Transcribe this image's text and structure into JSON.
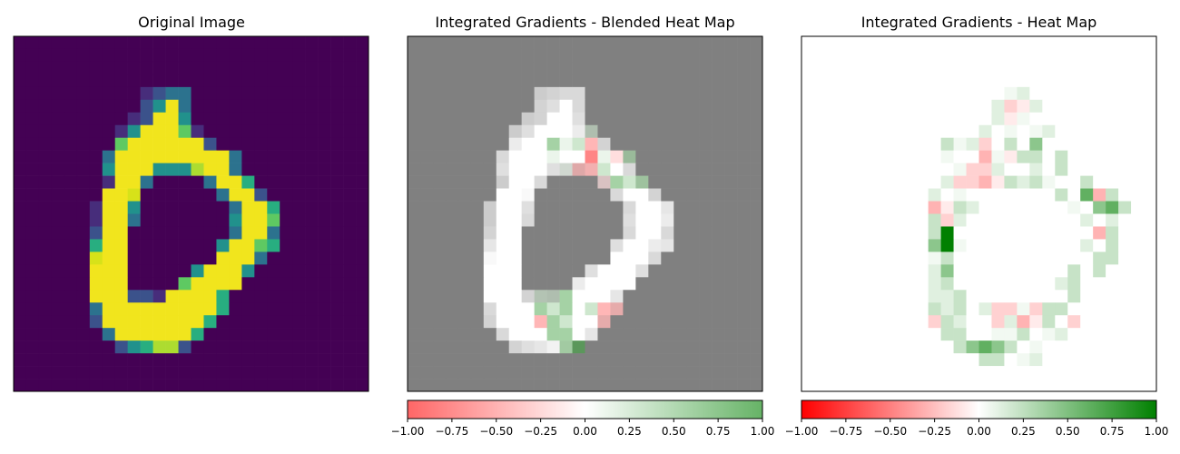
{
  "panels": [
    {
      "title": "Original Image",
      "colormap": "viridis"
    },
    {
      "title": "Integrated Gradients - Blended Heat Map",
      "colormap": "red-white-green (blended, alpha)"
    },
    {
      "title": "Integrated Gradients - Heat Map",
      "colormap": "red-white-green"
    }
  ],
  "colorbars": [
    {
      "ticks": [
        "−1.00",
        "−0.75",
        "−0.50",
        "−0.25",
        "0.00",
        "0.25",
        "0.50",
        "0.75",
        "1.00"
      ],
      "range": [
        -1,
        1
      ]
    },
    {
      "ticks": [
        "−1.00",
        "−0.75",
        "−0.50",
        "−0.25",
        "0.00",
        "0.25",
        "0.50",
        "0.75",
        "1.00"
      ],
      "range": [
        -1,
        1
      ]
    }
  ],
  "colors": {
    "negative": "#ff0000",
    "zero": "#ffffff",
    "positive": "#008000",
    "blend_background": "#808080"
  },
  "chart_data": {
    "type": "heatmap",
    "grid": [
      28,
      28
    ],
    "value_range": [
      -1,
      1
    ],
    "image": [
      "0000000000000000000000000000",
      "0000000000000000000000000000",
      "0000000000000000000000000000",
      "0000000000000000000000000000",
      "0000000000123300000000000000",
      "0000000000249300000000000000",
      "0000000001299400000000000000",
      "0000000014999610000000000000",
      "0000000069999992000000000000",
      "0000000399999999930000000000",
      "0000000499944479930000000000",
      "0000000199300003995000000000",
      "0000000998000000399200000000",
      "0000001994000000039950000000",
      "0000001993000000049960000000",
      "0000002990000000039930000000",
      "0000005990000000499650000000",
      "0000008990000000999300000000",
      "0000009990000049994000000000",
      "0000009990000699990000000000",
      "0000009992219999500000000000",
      "0000003999999999500000000000",
      "0000002999999995000000000000",
      "0000000399999950000000000000",
      "0000000024577200000000000000",
      "0000000000000000000000000000",
      "0000000000000000000000000000",
      "0000000000000000000000000000"
    ],
    "attribution": [
      "............................",
      "............................",
      "............................",
      "............................",
      "................ab..........",
      "...............bBAb.........",
      "...............bAa..........",
      "..............b.a.ab........",
      "...........cabB.c.d.........",
      "...........a..CaAcc.c.......",
      "............aBBb..b.c.......",
      "...........bBBCAcbca..c.....",
      "..........b.a.......c.eCc...",
      "..........CAcb.......a.dec..",
      "..........cBb.........b.b...",
      "..........cg...........Cc...",
      "..........dga.........b.c...",
      "..........ac...........cc...",
      "..........bd.........c.c....",
      "..........bc........bc......",
      "..........bbc........c......",
      "..........cbc.bBBaBcc.......",
      "..........Bcb..BbCAc.B......",
      "...........cc..aac.ab.......",
      "............cdedc.a.........",
      "..............cc.ab.........",
      "............................",
      "............................"
    ],
    "attribution_key": {
      ".": 0.0,
      "a": 0.05,
      "b": 0.12,
      "c": 0.22,
      "d": 0.45,
      "e": 0.62,
      "g": 1.0,
      "A": -0.08,
      "B": -0.18,
      "C": -0.3
    }
  }
}
